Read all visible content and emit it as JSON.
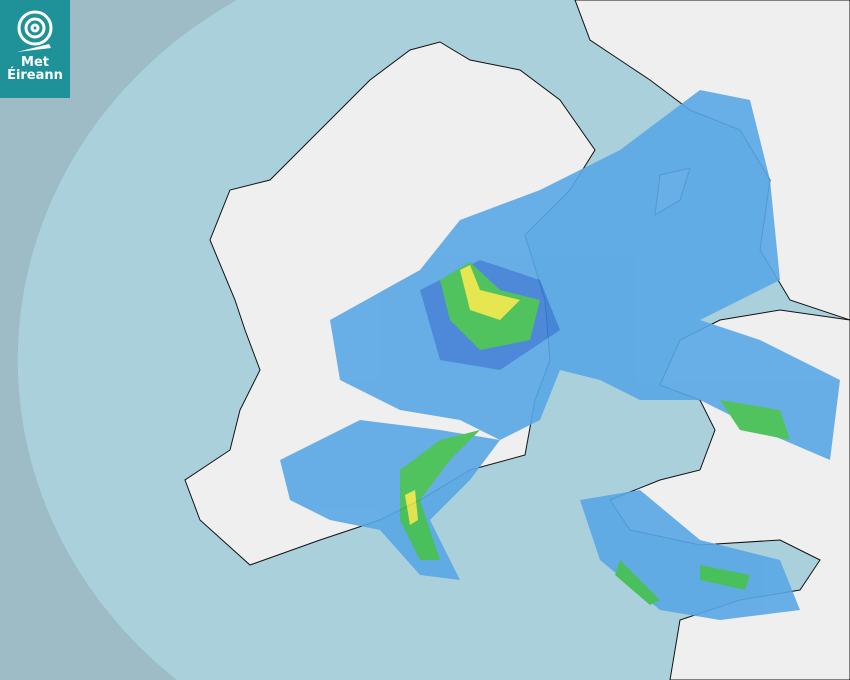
{
  "logo": {
    "line1": "Met",
    "line2": "Éireann",
    "color": "#1f9199"
  },
  "map": {
    "type": "rainfall-radar",
    "colors": {
      "sea_outside_coverage": "#9ebcc6",
      "sea_in_coverage": "#aad0dc",
      "land": "#eeeeee",
      "rain_light": "#5aa7e6",
      "rain_moderate": "#3c7fd6",
      "rain_heavy": "#3fbf4f",
      "rain_very_heavy": "#e6e640"
    }
  }
}
